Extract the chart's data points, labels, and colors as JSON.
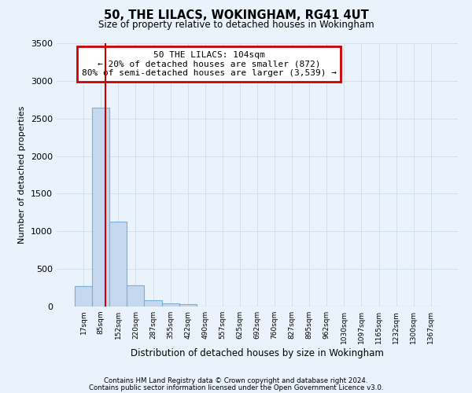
{
  "title": "50, THE LILACS, WOKINGHAM, RG41 4UT",
  "subtitle": "Size of property relative to detached houses in Wokingham",
  "bar_labels": [
    "17sqm",
    "85sqm",
    "152sqm",
    "220sqm",
    "287sqm",
    "355sqm",
    "422sqm",
    "490sqm",
    "557sqm",
    "625sqm",
    "692sqm",
    "760sqm",
    "827sqm",
    "895sqm",
    "962sqm",
    "1030sqm",
    "1097sqm",
    "1165sqm",
    "1232sqm",
    "1300sqm",
    "1367sqm"
  ],
  "bar_values": [
    275,
    2640,
    1130,
    280,
    85,
    40,
    30,
    0,
    0,
    0,
    0,
    0,
    0,
    0,
    0,
    0,
    0,
    0,
    0,
    0,
    0
  ],
  "bar_color": "#c5d8f0",
  "bar_edge_color": "#7bafd4",
  "bar_edge_width": 0.8,
  "red_line_x": 1.28,
  "ylim": [
    0,
    3500
  ],
  "yticks": [
    0,
    500,
    1000,
    1500,
    2000,
    2500,
    3000,
    3500
  ],
  "ylabel": "Number of detached properties",
  "xlabel": "Distribution of detached houses by size in Wokingham",
  "annotation_title": "50 THE LILACS: 104sqm",
  "annotation_line1": "← 20% of detached houses are smaller (872)",
  "annotation_line2": "80% of semi-detached houses are larger (3,539) →",
  "annotation_box_color": "#ffffff",
  "annotation_box_edge_color": "#cc0000",
  "footnote1": "Contains HM Land Registry data © Crown copyright and database right 2024.",
  "footnote2": "Contains public sector information licensed under the Open Government Licence v3.0.",
  "grid_color": "#c8d8e8",
  "background_color": "#eaf2fb",
  "axes_background": "#eaf2fb"
}
